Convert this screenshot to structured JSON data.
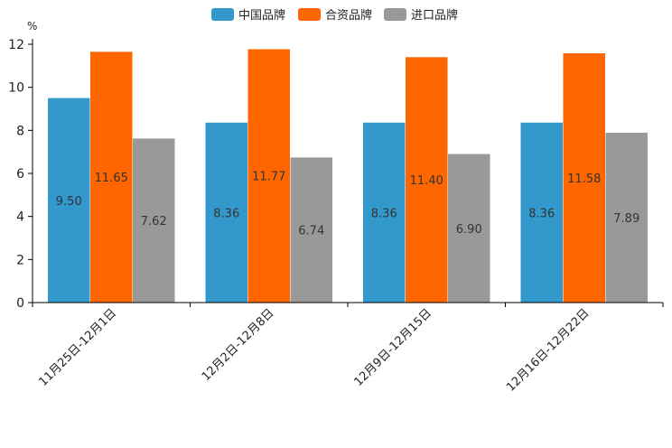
{
  "chart_data": {
    "type": "bar",
    "title": "",
    "unit": "%",
    "categories": [
      "11月25日-12月1日",
      "12月2日-12月8日",
      "12月9日-12月15日",
      "12月16日-12月22日"
    ],
    "series": [
      {
        "name": "中国品牌",
        "color": "#3399cc",
        "values": [
          9.5,
          8.36,
          8.36,
          8.36
        ],
        "labels": [
          "9.50",
          "8.36",
          "8.36",
          "8.36"
        ]
      },
      {
        "name": "合资品牌",
        "color": "#ff6600",
        "values": [
          11.65,
          11.77,
          11.4,
          11.58
        ],
        "labels": [
          "11.65",
          "11.77",
          "11.40",
          "11.58"
        ]
      },
      {
        "name": "进口品牌",
        "color": "#999999",
        "values": [
          7.62,
          6.74,
          6.9,
          7.89
        ],
        "labels": [
          "7.62",
          "6.74",
          "6.90",
          "7.89"
        ]
      }
    ],
    "ylim": [
      0,
      12
    ],
    "yticks": [
      "0",
      "2",
      "4",
      "6",
      "8",
      "10",
      "12"
    ],
    "legend_position": "top-center",
    "grid": false
  }
}
